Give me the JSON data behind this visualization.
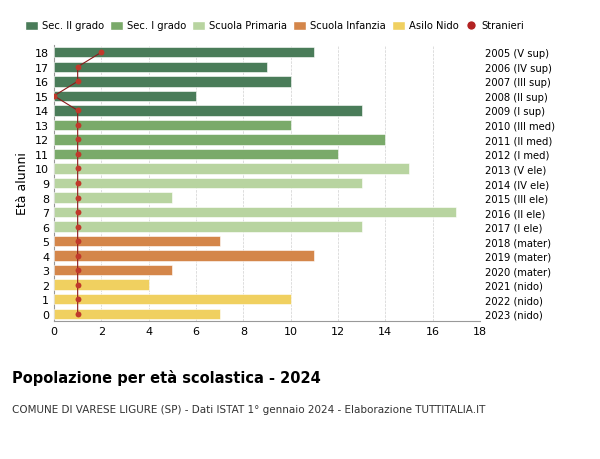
{
  "ages": [
    18,
    17,
    16,
    15,
    14,
    13,
    12,
    11,
    10,
    9,
    8,
    7,
    6,
    5,
    4,
    3,
    2,
    1,
    0
  ],
  "values": [
    11,
    9,
    10,
    6,
    13,
    10,
    14,
    12,
    15,
    13,
    5,
    17,
    13,
    7,
    11,
    5,
    4,
    10,
    7
  ],
  "bar_colors": [
    "#4a7c59",
    "#4a7c59",
    "#4a7c59",
    "#4a7c59",
    "#4a7c59",
    "#7aaa6a",
    "#7aaa6a",
    "#7aaa6a",
    "#b8d4a0",
    "#b8d4a0",
    "#b8d4a0",
    "#b8d4a0",
    "#b8d4a0",
    "#d4864a",
    "#d4864a",
    "#d4864a",
    "#f0d060",
    "#f0d060",
    "#f0d060"
  ],
  "right_labels": [
    "2005 (V sup)",
    "2006 (IV sup)",
    "2007 (III sup)",
    "2008 (II sup)",
    "2009 (I sup)",
    "2010 (III med)",
    "2011 (II med)",
    "2012 (I med)",
    "2013 (V ele)",
    "2014 (IV ele)",
    "2015 (III ele)",
    "2016 (II ele)",
    "2017 (I ele)",
    "2018 (mater)",
    "2019 (mater)",
    "2020 (mater)",
    "2021 (nido)",
    "2022 (nido)",
    "2023 (nido)"
  ],
  "legend_labels": [
    "Sec. II grado",
    "Sec. I grado",
    "Scuola Primaria",
    "Scuola Infanzia",
    "Asilo Nido",
    "Stranieri"
  ],
  "legend_colors": [
    "#4a7c59",
    "#7aaa6a",
    "#b8d4a0",
    "#d4864a",
    "#f0d060",
    "#b22222"
  ],
  "ylabel": "Età alunni",
  "title": "Popolazione per età scolastica - 2024",
  "subtitle": "COMUNE DI VARESE LIGURE (SP) - Dati ISTAT 1° gennaio 2024 - Elaborazione TUTTITALIA.IT",
  "xlim": [
    0,
    18
  ],
  "xticks": [
    0,
    2,
    4,
    6,
    8,
    10,
    12,
    14,
    16,
    18
  ],
  "background_color": "#ffffff",
  "grid_color": "#d0d0d0",
  "stranieri_x": [
    2,
    1,
    1,
    0,
    1,
    1,
    1,
    1,
    1,
    1,
    1,
    1,
    1,
    1,
    1,
    1,
    1,
    1,
    1
  ]
}
